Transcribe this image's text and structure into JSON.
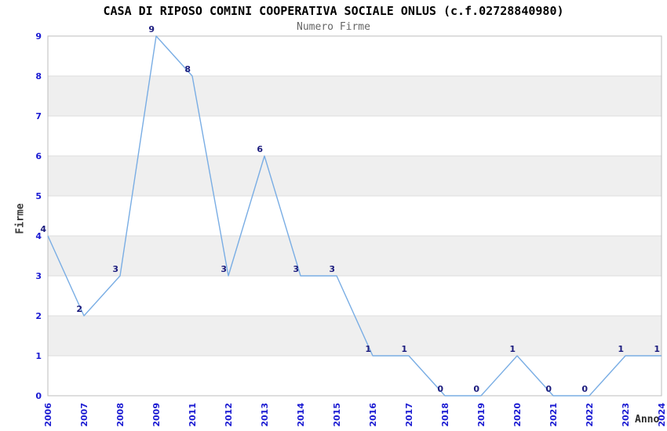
{
  "chart_data": {
    "type": "line",
    "title": "CASA DI RIPOSO COMINI COOPERATIVA SOCIALE ONLUS (c.f.02728840980)",
    "subtitle": "Numero Firme",
    "xlabel": "Anno",
    "ylabel": "Firme",
    "categories": [
      "2006",
      "2007",
      "2008",
      "2009",
      "2011",
      "2012",
      "2013",
      "2014",
      "2015",
      "2016",
      "2017",
      "2018",
      "2019",
      "2020",
      "2021",
      "2022",
      "2023",
      "2024"
    ],
    "values": [
      4,
      2,
      3,
      9,
      8,
      3,
      6,
      3,
      3,
      1,
      1,
      0,
      0,
      1,
      0,
      0,
      1,
      1
    ],
    "ylim": [
      0,
      9
    ],
    "yticks": [
      0,
      1,
      2,
      3,
      4,
      5,
      6,
      7,
      8,
      9
    ],
    "grid": true,
    "legend": "none",
    "band_fill": "alternating-horizontal",
    "data_labels": true,
    "markers": "none",
    "colors": {
      "line": "#79ade4",
      "tick_label": "#1a1ad2",
      "data_label": "#1c1c7e",
      "band": "#efefef",
      "gridline": "#dcdcdc",
      "plot_border": "#bdbdbd",
      "title": "#000000",
      "subtitle": "#666666",
      "axis_title": "#3a3a3a",
      "background": "#ffffff"
    }
  }
}
